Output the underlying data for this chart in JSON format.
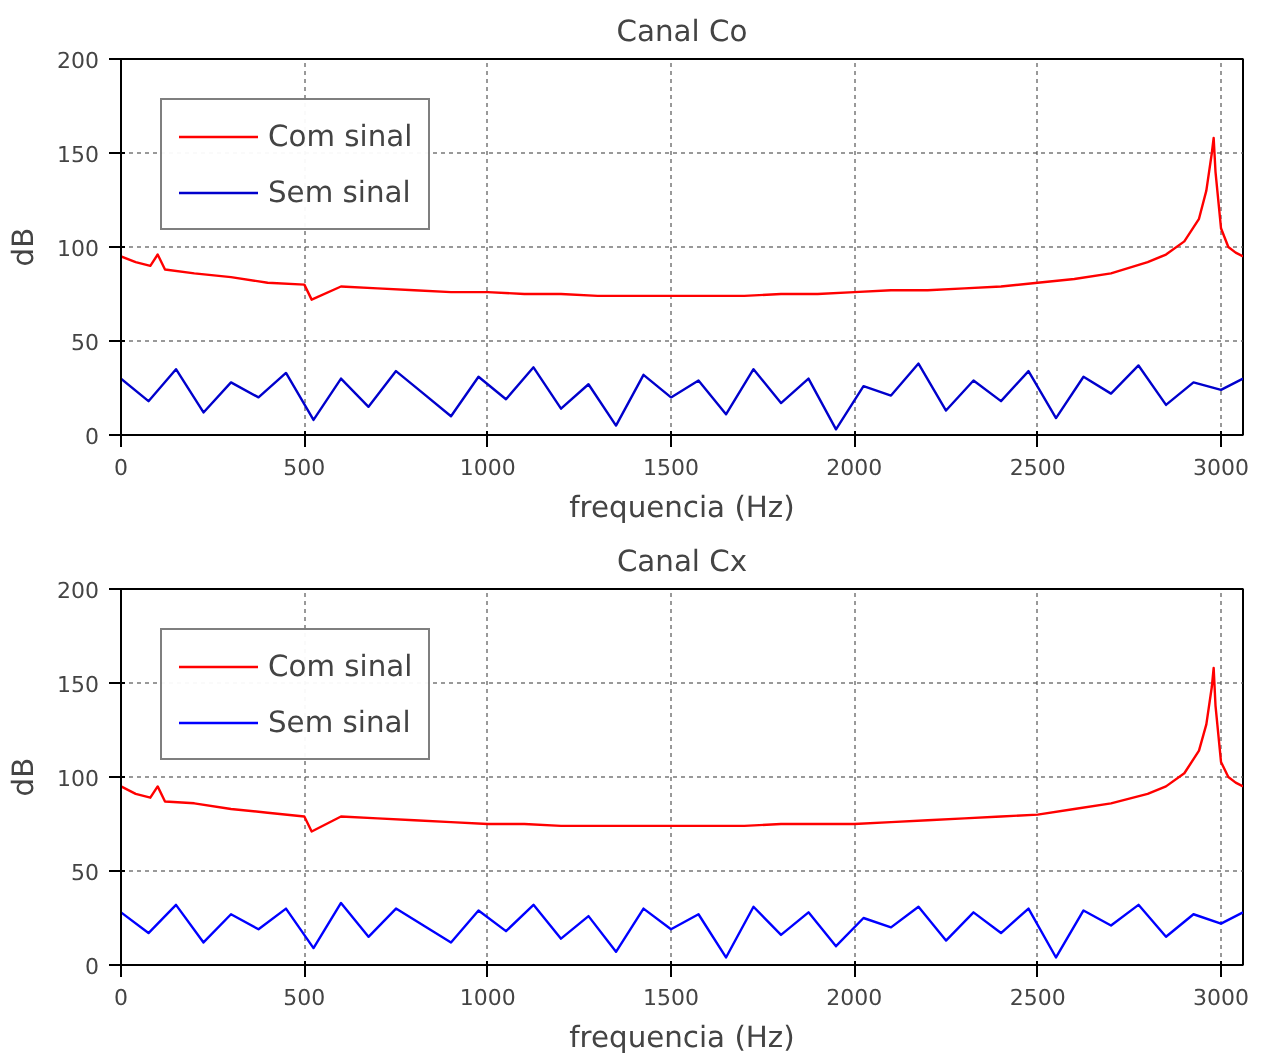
{
  "chart_data": [
    {
      "type": "line",
      "title": "Canal Co",
      "xlabel": "frequencia (Hz)",
      "ylabel": "dB",
      "xlim": [
        0,
        3060
      ],
      "ylim": [
        0,
        200
      ],
      "xticks": [
        0,
        500,
        1000,
        1500,
        2000,
        2500,
        3000
      ],
      "yticks": [
        0,
        50,
        100,
        150,
        200
      ],
      "grid": true,
      "legend": "top left",
      "series": [
        {
          "name": "Com sinal",
          "color": "#ff0000",
          "x": [
            0,
            40,
            80,
            100,
            120,
            200,
            300,
            400,
            500,
            520,
            600,
            700,
            800,
            900,
            1000,
            1100,
            1200,
            1300,
            1400,
            1500,
            1600,
            1700,
            1800,
            1900,
            2000,
            2100,
            2200,
            2300,
            2400,
            2500,
            2600,
            2700,
            2800,
            2850,
            2900,
            2940,
            2960,
            2975,
            2980,
            2985,
            3000,
            3020,
            3040,
            3060
          ],
          "values": [
            95,
            92,
            90,
            96,
            88,
            86,
            84,
            81,
            80,
            72,
            79,
            78,
            77,
            76,
            76,
            75,
            75,
            74,
            74,
            74,
            74,
            74,
            75,
            75,
            76,
            77,
            77,
            78,
            79,
            81,
            83,
            86,
            92,
            96,
            103,
            115,
            130,
            150,
            158,
            140,
            110,
            100,
            97,
            95
          ]
        },
        {
          "name": "Sem sinal",
          "color": "#0000cc",
          "x": [
            0,
            75,
            150,
            225,
            300,
            375,
            450,
            525,
            600,
            675,
            750,
            825,
            900,
            975,
            1050,
            1125,
            1200,
            1275,
            1350,
            1425,
            1500,
            1575,
            1650,
            1725,
            1800,
            1875,
            1950,
            2025,
            2100,
            2175,
            2250,
            2325,
            2400,
            2475,
            2550,
            2625,
            2700,
            2775,
            2850,
            2925,
            3000,
            3060
          ],
          "values": [
            30,
            18,
            35,
            12,
            28,
            20,
            33,
            8,
            30,
            15,
            34,
            22,
            10,
            31,
            19,
            36,
            14,
            27,
            5,
            32,
            20,
            29,
            11,
            35,
            17,
            30,
            3,
            26,
            21,
            38,
            13,
            29,
            18,
            34,
            9,
            31,
            22,
            37,
            16,
            28,
            24,
            30
          ]
        }
      ]
    },
    {
      "type": "line",
      "title": "Canal Cx",
      "xlabel": "frequencia (Hz)",
      "ylabel": "dB",
      "xlim": [
        0,
        3060
      ],
      "ylim": [
        0,
        200
      ],
      "xticks": [
        0,
        500,
        1000,
        1500,
        2000,
        2500,
        3000
      ],
      "yticks": [
        0,
        50,
        100,
        150,
        200
      ],
      "grid": true,
      "legend": "top left",
      "series": [
        {
          "name": "Com sinal",
          "color": "#ff0000",
          "x": [
            0,
            40,
            80,
            100,
            120,
            200,
            300,
            400,
            500,
            520,
            600,
            700,
            800,
            900,
            1000,
            1100,
            1200,
            1300,
            1400,
            1500,
            1600,
            1700,
            1800,
            1900,
            2000,
            2100,
            2200,
            2300,
            2400,
            2500,
            2600,
            2700,
            2800,
            2850,
            2900,
            2940,
            2960,
            2975,
            2980,
            2985,
            3000,
            3020,
            3040,
            3060
          ],
          "values": [
            95,
            91,
            89,
            95,
            87,
            86,
            83,
            81,
            79,
            71,
            79,
            78,
            77,
            76,
            75,
            75,
            74,
            74,
            74,
            74,
            74,
            74,
            75,
            75,
            75,
            76,
            77,
            78,
            79,
            80,
            83,
            86,
            91,
            95,
            102,
            114,
            128,
            148,
            158,
            138,
            108,
            100,
            97,
            95
          ]
        },
        {
          "name": "Sem sinal",
          "color": "#0000ff",
          "x": [
            0,
            75,
            150,
            225,
            300,
            375,
            450,
            525,
            600,
            675,
            750,
            825,
            900,
            975,
            1050,
            1125,
            1200,
            1275,
            1350,
            1425,
            1500,
            1575,
            1650,
            1725,
            1800,
            1875,
            1950,
            2025,
            2100,
            2175,
            2250,
            2325,
            2400,
            2475,
            2550,
            2625,
            2700,
            2775,
            2850,
            2925,
            3000,
            3060
          ],
          "values": [
            28,
            17,
            32,
            12,
            27,
            19,
            30,
            9,
            33,
            15,
            30,
            21,
            12,
            29,
            18,
            32,
            14,
            26,
            7,
            30,
            19,
            27,
            4,
            31,
            16,
            28,
            10,
            25,
            20,
            31,
            13,
            28,
            17,
            30,
            4,
            29,
            21,
            32,
            15,
            27,
            22,
            28
          ]
        }
      ]
    }
  ]
}
